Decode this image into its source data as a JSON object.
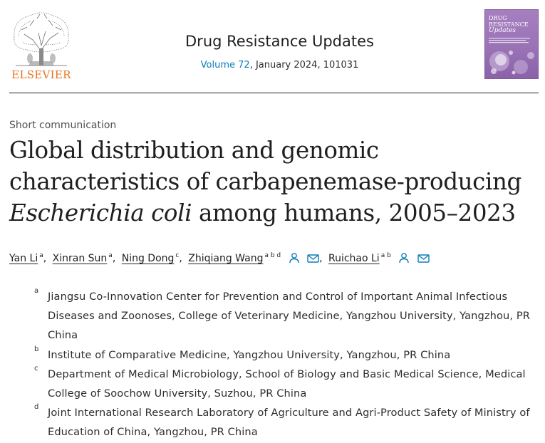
{
  "header": {
    "publisher": "ELSEVIER",
    "journal_title": "Drug Resistance Updates",
    "volume_link": "Volume 72",
    "issue_rest": ", January 2024, 101031",
    "cover": {
      "title_line1": "DRUG",
      "title_line2": "RESISTANCE",
      "title_line3": "Updates"
    }
  },
  "article": {
    "type": "Short communication",
    "title_line1": "Global distribution and genomic",
    "title_line2": "characteristics of carbapenemase-producing",
    "title_italic": "Escherichia coli",
    "title_line3_rest": " among humans, 2005–2023"
  },
  "authors": [
    {
      "name": "Yan Li",
      "sup": "a"
    },
    {
      "name": "Xinran Sun",
      "sup": "a"
    },
    {
      "name": "Ning Dong",
      "sup": "c"
    },
    {
      "name": "Zhiqiang Wang",
      "sup": "a b d"
    },
    {
      "name": "Ruichao Li",
      "sup": "a b"
    }
  ],
  "affiliations": [
    {
      "letter": "a",
      "text": "Jiangsu Co-Innovation Center for Prevention and Control of Important Animal Infectious Diseases and Zoonoses, College of Veterinary Medicine, Yangzhou University, Yangzhou, PR China"
    },
    {
      "letter": "b",
      "text": "Institute of Comparative Medicine, Yangzhou University, Yangzhou, PR China"
    },
    {
      "letter": "c",
      "text": "Department of Medical Microbiology, School of Biology and Basic Medical Science, Medical College of Soochow University, Suzhou, PR China"
    },
    {
      "letter": "d",
      "text": "Joint International Research Laboratory of Agriculture and Agri-Product Safety of Ministry of Education of China, Yangzhou, PR China"
    }
  ],
  "icons": {
    "person": "person-icon",
    "envelope": "envelope-icon"
  },
  "colors": {
    "elsevier_orange": "#e9711c",
    "link_blue": "#0c7dbb",
    "cover_purple": "#9a73b6"
  }
}
